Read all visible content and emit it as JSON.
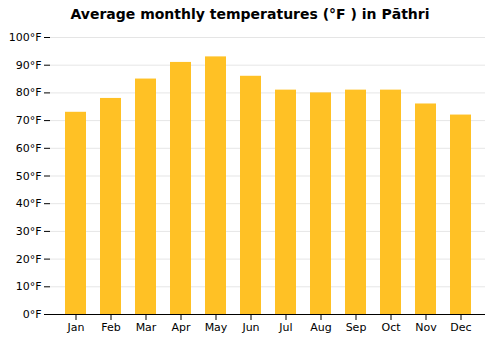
{
  "chart_data": {
    "type": "bar",
    "title": "Average monthly temperatures (°F ) in Pāthri",
    "categories": [
      "Jan",
      "Feb",
      "Mar",
      "Apr",
      "May",
      "Jun",
      "Jul",
      "Aug",
      "Sep",
      "Oct",
      "Nov",
      "Dec"
    ],
    "values": [
      73,
      78,
      85,
      91,
      93,
      86,
      81,
      80,
      81,
      81,
      76,
      72
    ],
    "color": "#FFC125",
    "ylim": [
      0,
      100
    ],
    "yticks": [
      {
        "value": 0,
        "label": "0°F"
      },
      {
        "value": 10,
        "label": "10°F"
      },
      {
        "value": 20,
        "label": "20°F"
      },
      {
        "value": 30,
        "label": "30°F"
      },
      {
        "value": 40,
        "label": "40°F"
      },
      {
        "value": 50,
        "label": "50°F"
      },
      {
        "value": 60,
        "label": "60°F"
      },
      {
        "value": 70,
        "label": "70°F"
      },
      {
        "value": 80,
        "label": "80°F"
      },
      {
        "value": 90,
        "label": "90°F"
      },
      {
        "value": 100,
        "label": "100°F"
      }
    ],
    "grid": true
  }
}
